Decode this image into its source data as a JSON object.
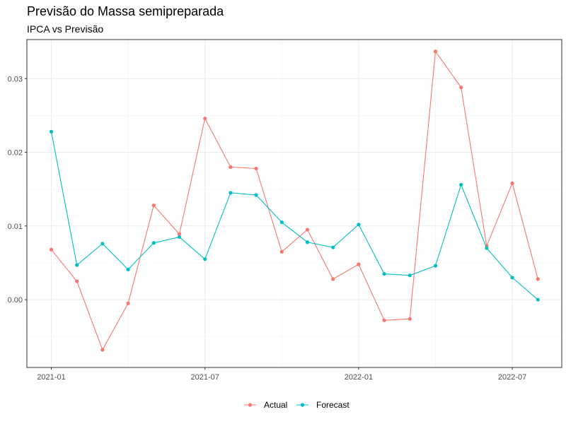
{
  "chart_data": {
    "type": "line",
    "title": "Previsão do Massa semipreparada",
    "subtitle": "IPCA vs Previsão",
    "xlabel": "",
    "ylabel": "",
    "x": [
      "2021-01",
      "2021-02",
      "2021-03",
      "2021-04",
      "2021-05",
      "2021-06",
      "2021-07",
      "2021-08",
      "2021-09",
      "2021-10",
      "2021-11",
      "2021-12",
      "2022-01",
      "2022-02",
      "2022-03",
      "2022-04",
      "2022-05",
      "2022-06",
      "2022-07",
      "2022-08"
    ],
    "x_ticks": [
      "2021-01",
      "2021-07",
      "2022-01",
      "2022-07"
    ],
    "y_ticks": [
      0.0,
      0.01,
      0.02,
      0.03
    ],
    "y_tick_labels": [
      "0.00",
      "0.01",
      "0.02",
      "0.03"
    ],
    "ylim": [
      -0.0092,
      0.0353
    ],
    "grid": true,
    "legend_position": "bottom",
    "series": [
      {
        "name": "Actual",
        "color": "#F8766D",
        "values": [
          0.0068,
          0.0025,
          -0.0068,
          -0.0005,
          0.0128,
          0.0089,
          0.0246,
          0.018,
          0.0178,
          0.0065,
          0.0095,
          0.0028,
          0.0048,
          -0.0028,
          -0.0026,
          0.0337,
          0.0288,
          0.0073,
          0.0158,
          0.0028
        ]
      },
      {
        "name": "Forecast",
        "color": "#00BFC4",
        "values": [
          0.0228,
          0.0047,
          0.0076,
          0.0041,
          0.0077,
          0.0085,
          0.0055,
          0.0145,
          0.0142,
          0.0105,
          0.0078,
          0.0071,
          0.0102,
          0.0035,
          0.0033,
          0.0046,
          0.0156,
          0.007,
          0.003,
          0.0
        ]
      }
    ]
  }
}
